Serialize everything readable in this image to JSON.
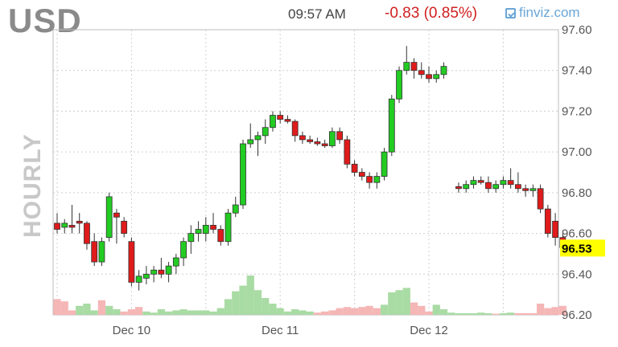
{
  "header": {
    "ticker": "USD",
    "time": "09:57 AM",
    "change": "-0.83 (0.85%)",
    "brand": "finviz.com"
  },
  "colors": {
    "up": "#22cc22",
    "down": "#e01b1b",
    "up_volume": "#a9dba4",
    "down_volume": "#f5b6b6",
    "price_tag": "#ffff00",
    "grid": "#cfcfcf"
  },
  "chart_data": {
    "type": "candlestick",
    "period_label": "HOURLY",
    "current_price_label": "96.53",
    "y_ticks": [
      "97.60",
      "97.40",
      "97.20",
      "97.00",
      "96.80",
      "96.60",
      "96.40",
      "96.20"
    ],
    "ylim": [
      96.2,
      97.6
    ],
    "x_tick_labels": [
      "Dec 10",
      "Dec 11",
      "Dec 12"
    ],
    "x_tick_index": [
      10,
      30,
      50
    ],
    "grid": true,
    "candles": [
      [
        0,
        96.65,
        96.7,
        96.6,
        96.62
      ],
      [
        1,
        96.63,
        96.67,
        96.6,
        96.65
      ],
      [
        2,
        96.64,
        96.74,
        96.6,
        96.63
      ],
      [
        3,
        96.66,
        96.7,
        96.6,
        96.65
      ],
      [
        4,
        96.65,
        96.66,
        96.52,
        96.55
      ],
      [
        5,
        96.56,
        96.6,
        96.44,
        96.46
      ],
      [
        6,
        96.46,
        96.58,
        96.44,
        96.56
      ],
      [
        7,
        96.58,
        96.8,
        96.56,
        96.78
      ],
      [
        8,
        96.7,
        96.72,
        96.55,
        96.68
      ],
      [
        9,
        96.66,
        96.68,
        96.58,
        96.6
      ],
      [
        10,
        96.56,
        96.58,
        96.34,
        96.36
      ],
      [
        11,
        96.36,
        96.42,
        96.32,
        96.39
      ],
      [
        12,
        96.38,
        96.44,
        96.35,
        96.4
      ],
      [
        13,
        96.4,
        96.44,
        96.36,
        96.42
      ],
      [
        14,
        96.42,
        96.48,
        96.38,
        96.4
      ],
      [
        15,
        96.4,
        96.46,
        96.36,
        96.44
      ],
      [
        16,
        96.44,
        96.5,
        96.4,
        96.48
      ],
      [
        17,
        96.48,
        96.58,
        96.44,
        96.56
      ],
      [
        18,
        96.56,
        96.64,
        96.5,
        96.6
      ],
      [
        19,
        96.6,
        96.66,
        96.56,
        96.62
      ],
      [
        20,
        96.6,
        96.68,
        96.56,
        96.64
      ],
      [
        21,
        96.64,
        96.7,
        96.6,
        96.62
      ],
      [
        22,
        96.62,
        96.64,
        96.54,
        96.56
      ],
      [
        23,
        96.56,
        96.72,
        96.54,
        96.7
      ],
      [
        24,
        96.7,
        96.78,
        96.68,
        96.74
      ],
      [
        25,
        96.74,
        97.06,
        96.72,
        97.04
      ],
      [
        26,
        97.04,
        97.14,
        97.02,
        97.06
      ],
      [
        27,
        97.06,
        97.1,
        96.98,
        97.08
      ],
      [
        28,
        97.08,
        97.16,
        97.04,
        97.12
      ],
      [
        29,
        97.12,
        97.2,
        97.1,
        97.18
      ],
      [
        30,
        97.18,
        97.2,
        97.14,
        97.16
      ],
      [
        31,
        97.16,
        97.18,
        97.14,
        97.15
      ],
      [
        32,
        97.15,
        97.16,
        97.05,
        97.08
      ],
      [
        33,
        97.08,
        97.1,
        97.04,
        97.06
      ],
      [
        34,
        97.06,
        97.08,
        97.04,
        97.05
      ],
      [
        35,
        97.05,
        97.07,
        97.03,
        97.04
      ],
      [
        36,
        97.04,
        97.06,
        97.02,
        97.03
      ],
      [
        37,
        97.03,
        97.12,
        97.02,
        97.1
      ],
      [
        38,
        97.1,
        97.12,
        97.04,
        97.06
      ],
      [
        39,
        97.06,
        97.08,
        96.92,
        96.94
      ],
      [
        40,
        96.94,
        96.96,
        96.88,
        96.9
      ],
      [
        41,
        96.9,
        96.92,
        96.86,
        96.88
      ],
      [
        42,
        96.88,
        96.9,
        96.82,
        96.85
      ],
      [
        43,
        96.85,
        96.9,
        96.82,
        96.88
      ],
      [
        44,
        96.88,
        97.02,
        96.86,
        97.0
      ],
      [
        45,
        97.0,
        97.28,
        96.98,
        97.26
      ],
      [
        46,
        97.26,
        97.42,
        97.24,
        97.4
      ],
      [
        47,
        97.4,
        97.52,
        97.38,
        97.44
      ],
      [
        48,
        97.44,
        97.46,
        97.36,
        97.4
      ],
      [
        49,
        97.4,
        97.44,
        97.36,
        97.38
      ],
      [
        50,
        97.38,
        97.42,
        97.34,
        97.36
      ],
      [
        51,
        97.36,
        97.4,
        97.34,
        97.38
      ],
      [
        52,
        97.38,
        97.44,
        97.36,
        97.42
      ],
      [
        54,
        96.83,
        96.85,
        96.8,
        96.82
      ],
      [
        55,
        96.82,
        96.86,
        96.8,
        96.84
      ],
      [
        56,
        96.84,
        96.88,
        96.82,
        96.86
      ],
      [
        57,
        96.86,
        96.88,
        96.84,
        96.85
      ],
      [
        58,
        96.85,
        96.88,
        96.8,
        96.82
      ],
      [
        59,
        96.82,
        96.86,
        96.8,
        96.84
      ],
      [
        60,
        96.84,
        96.88,
        96.82,
        96.86
      ],
      [
        61,
        96.86,
        96.92,
        96.82,
        96.84
      ],
      [
        62,
        96.84,
        96.9,
        96.8,
        96.82
      ],
      [
        63,
        96.82,
        96.84,
        96.78,
        96.81
      ],
      [
        64,
        96.81,
        96.84,
        96.78,
        96.82
      ],
      [
        65,
        96.82,
        96.84,
        96.7,
        96.72
      ],
      [
        66,
        96.72,
        96.74,
        96.58,
        96.6
      ],
      [
        67,
        96.66,
        96.7,
        96.54,
        96.58
      ],
      [
        68,
        96.58,
        96.6,
        96.5,
        96.53
      ]
    ],
    "volume": [
      [
        0,
        0.28,
        "down"
      ],
      [
        1,
        0.24,
        "down"
      ],
      [
        2,
        0.08,
        "down"
      ],
      [
        3,
        0.16,
        "up"
      ],
      [
        4,
        0.2,
        "up"
      ],
      [
        5,
        0.08,
        "up"
      ],
      [
        6,
        0.26,
        "down"
      ],
      [
        7,
        0.16,
        "up"
      ],
      [
        8,
        0.1,
        "up"
      ],
      [
        9,
        0.06,
        "down"
      ],
      [
        10,
        0.1,
        "down"
      ],
      [
        11,
        0.14,
        "down"
      ],
      [
        12,
        0.06,
        "up"
      ],
      [
        13,
        0.04,
        "up"
      ],
      [
        14,
        0.1,
        "up"
      ],
      [
        15,
        0.06,
        "up"
      ],
      [
        16,
        0.08,
        "up"
      ],
      [
        17,
        0.1,
        "up"
      ],
      [
        18,
        0.08,
        "up"
      ],
      [
        19,
        0.08,
        "up"
      ],
      [
        20,
        0.08,
        "up"
      ],
      [
        21,
        0.06,
        "up"
      ],
      [
        22,
        0.12,
        "up"
      ],
      [
        23,
        0.28,
        "up"
      ],
      [
        24,
        0.42,
        "up"
      ],
      [
        25,
        0.52,
        "up"
      ],
      [
        26,
        0.7,
        "up"
      ],
      [
        27,
        0.44,
        "up"
      ],
      [
        28,
        0.3,
        "up"
      ],
      [
        29,
        0.2,
        "up"
      ],
      [
        30,
        0.12,
        "up"
      ],
      [
        31,
        0.06,
        "up"
      ],
      [
        32,
        0.1,
        "up"
      ],
      [
        33,
        0.08,
        "up"
      ],
      [
        34,
        0.06,
        "up"
      ],
      [
        35,
        0.04,
        "down"
      ],
      [
        36,
        0.06,
        "down"
      ],
      [
        37,
        0.08,
        "down"
      ],
      [
        38,
        0.12,
        "down"
      ],
      [
        39,
        0.14,
        "down"
      ],
      [
        40,
        0.12,
        "down"
      ],
      [
        41,
        0.14,
        "down"
      ],
      [
        42,
        0.16,
        "down"
      ],
      [
        43,
        0.12,
        "down"
      ],
      [
        44,
        0.18,
        "up"
      ],
      [
        45,
        0.4,
        "up"
      ],
      [
        46,
        0.44,
        "up"
      ],
      [
        47,
        0.48,
        "up"
      ],
      [
        48,
        0.22,
        "down"
      ],
      [
        49,
        0.16,
        "down"
      ],
      [
        50,
        0.06,
        "down"
      ],
      [
        51,
        0.18,
        "up"
      ],
      [
        52,
        0.1,
        "up"
      ],
      [
        53,
        0.04,
        "up"
      ],
      [
        54,
        0.03,
        "up"
      ],
      [
        55,
        0.03,
        "up"
      ],
      [
        56,
        0.03,
        "up"
      ],
      [
        57,
        0.04,
        "up"
      ],
      [
        58,
        0.03,
        "up"
      ],
      [
        59,
        0.02,
        "down"
      ],
      [
        60,
        0.03,
        "up"
      ],
      [
        61,
        0.04,
        "up"
      ],
      [
        62,
        0.03,
        "down"
      ],
      [
        63,
        0.03,
        "down"
      ],
      [
        64,
        0.03,
        "down"
      ],
      [
        65,
        0.2,
        "down"
      ],
      [
        66,
        0.12,
        "down"
      ],
      [
        67,
        0.14,
        "down"
      ],
      [
        68,
        0.16,
        "down"
      ]
    ]
  }
}
